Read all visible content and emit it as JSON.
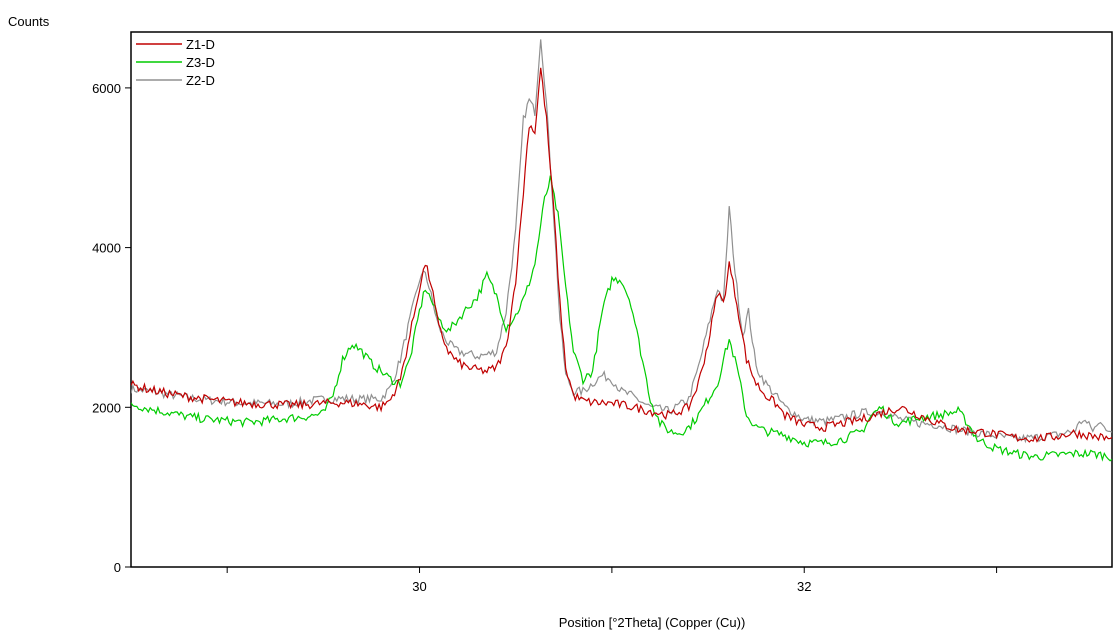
{
  "chart_data": {
    "type": "line",
    "title": "",
    "xlabel": "Position [°2Theta] (Copper (Cu))",
    "ylabel": "Counts",
    "xlim": [
      28.5,
      33.6
    ],
    "ylim": [
      0,
      6700
    ],
    "x_ticks": [
      29,
      30,
      31,
      32,
      33
    ],
    "x_tick_labels": [
      "30",
      "32"
    ],
    "x_tick_label_values": [
      30,
      32
    ],
    "y_ticks": [
      0,
      2000,
      4000,
      6000
    ],
    "y_tick_labels": [
      "0",
      "2000",
      "4000",
      "6000"
    ],
    "grid": false,
    "legend_position": "top-left",
    "series": [
      {
        "name": "Z1-D",
        "color": "#c00000",
        "points": [
          [
            28.5,
            2280
          ],
          [
            28.6,
            2220
          ],
          [
            28.7,
            2170
          ],
          [
            28.8,
            2130
          ],
          [
            28.9,
            2100
          ],
          [
            29.0,
            2070
          ],
          [
            29.1,
            2050
          ],
          [
            29.2,
            2040
          ],
          [
            29.3,
            2030
          ],
          [
            29.4,
            2030
          ],
          [
            29.5,
            2050
          ],
          [
            29.6,
            2060
          ],
          [
            29.7,
            2040
          ],
          [
            29.8,
            2000
          ],
          [
            29.85,
            2100
          ],
          [
            29.9,
            2350
          ],
          [
            29.95,
            2900
          ],
          [
            30.0,
            3500
          ],
          [
            30.03,
            3800
          ],
          [
            30.06,
            3550
          ],
          [
            30.1,
            3000
          ],
          [
            30.15,
            2700
          ],
          [
            30.2,
            2560
          ],
          [
            30.25,
            2500
          ],
          [
            30.3,
            2470
          ],
          [
            30.35,
            2450
          ],
          [
            30.4,
            2500
          ],
          [
            30.45,
            2750
          ],
          [
            30.5,
            3600
          ],
          [
            30.54,
            4700
          ],
          [
            30.57,
            5550
          ],
          [
            30.6,
            5450
          ],
          [
            30.63,
            6250
          ],
          [
            30.66,
            5600
          ],
          [
            30.7,
            4400
          ],
          [
            30.73,
            3300
          ],
          [
            30.76,
            2500
          ],
          [
            30.8,
            2150
          ],
          [
            30.85,
            2080
          ],
          [
            30.9,
            2060
          ],
          [
            31.0,
            2050
          ],
          [
            31.1,
            2010
          ],
          [
            31.2,
            1950
          ],
          [
            31.3,
            1900
          ],
          [
            31.4,
            2000
          ],
          [
            31.45,
            2300
          ],
          [
            31.5,
            2800
          ],
          [
            31.55,
            3450
          ],
          [
            31.58,
            3300
          ],
          [
            31.61,
            3800
          ],
          [
            31.65,
            3300
          ],
          [
            31.7,
            2600
          ],
          [
            31.75,
            2300
          ],
          [
            31.8,
            2150
          ],
          [
            31.85,
            2050
          ],
          [
            31.9,
            1900
          ],
          [
            32.0,
            1780
          ],
          [
            32.1,
            1750
          ],
          [
            32.2,
            1800
          ],
          [
            32.3,
            1850
          ],
          [
            32.4,
            1930
          ],
          [
            32.5,
            2000
          ],
          [
            32.6,
            1900
          ],
          [
            32.7,
            1800
          ],
          [
            32.8,
            1720
          ],
          [
            32.9,
            1700
          ],
          [
            33.0,
            1660
          ],
          [
            33.1,
            1620
          ],
          [
            33.2,
            1610
          ],
          [
            33.3,
            1630
          ],
          [
            33.4,
            1680
          ],
          [
            33.5,
            1640
          ],
          [
            33.6,
            1600
          ]
        ]
      },
      {
        "name": "Z3-D",
        "color": "#00cc00",
        "points": [
          [
            28.5,
            2040
          ],
          [
            28.6,
            1980
          ],
          [
            28.7,
            1930
          ],
          [
            28.8,
            1880
          ],
          [
            28.9,
            1850
          ],
          [
            29.0,
            1830
          ],
          [
            29.1,
            1810
          ],
          [
            29.2,
            1830
          ],
          [
            29.3,
            1860
          ],
          [
            29.4,
            1880
          ],
          [
            29.5,
            1920
          ],
          [
            29.55,
            2150
          ],
          [
            29.6,
            2600
          ],
          [
            29.65,
            2800
          ],
          [
            29.7,
            2700
          ],
          [
            29.75,
            2550
          ],
          [
            29.8,
            2450
          ],
          [
            29.85,
            2350
          ],
          [
            29.9,
            2300
          ],
          [
            29.95,
            2600
          ],
          [
            30.0,
            3200
          ],
          [
            30.03,
            3500
          ],
          [
            30.06,
            3350
          ],
          [
            30.1,
            3100
          ],
          [
            30.15,
            2950
          ],
          [
            30.2,
            3100
          ],
          [
            30.25,
            3250
          ],
          [
            30.3,
            3380
          ],
          [
            30.35,
            3650
          ],
          [
            30.4,
            3400
          ],
          [
            30.45,
            3000
          ],
          [
            30.5,
            3150
          ],
          [
            30.55,
            3400
          ],
          [
            30.6,
            3800
          ],
          [
            30.65,
            4600
          ],
          [
            30.68,
            4850
          ],
          [
            30.72,
            4400
          ],
          [
            30.76,
            3500
          ],
          [
            30.8,
            2700
          ],
          [
            30.85,
            2350
          ],
          [
            30.9,
            2450
          ],
          [
            30.95,
            3200
          ],
          [
            31.0,
            3600
          ],
          [
            31.05,
            3600
          ],
          [
            31.1,
            3300
          ],
          [
            31.15,
            2700
          ],
          [
            31.2,
            2100
          ],
          [
            31.25,
            1800
          ],
          [
            31.3,
            1700
          ],
          [
            31.35,
            1680
          ],
          [
            31.4,
            1750
          ],
          [
            31.45,
            1900
          ],
          [
            31.5,
            2100
          ],
          [
            31.55,
            2300
          ],
          [
            31.58,
            2600
          ],
          [
            31.61,
            2850
          ],
          [
            31.65,
            2500
          ],
          [
            31.7,
            1900
          ],
          [
            31.75,
            1750
          ],
          [
            31.8,
            1700
          ],
          [
            31.9,
            1650
          ],
          [
            32.0,
            1560
          ],
          [
            32.1,
            1550
          ],
          [
            32.2,
            1600
          ],
          [
            32.3,
            1700
          ],
          [
            32.35,
            1900
          ],
          [
            32.4,
            2000
          ],
          [
            32.45,
            1850
          ],
          [
            32.5,
            1800
          ],
          [
            32.6,
            1870
          ],
          [
            32.7,
            1900
          ],
          [
            32.8,
            1950
          ],
          [
            32.85,
            1800
          ],
          [
            32.9,
            1600
          ],
          [
            33.0,
            1480
          ],
          [
            33.1,
            1420
          ],
          [
            33.2,
            1380
          ],
          [
            33.3,
            1400
          ],
          [
            33.4,
            1420
          ],
          [
            33.5,
            1420
          ],
          [
            33.6,
            1380
          ]
        ]
      },
      {
        "name": "Z2-D",
        "color": "#909090",
        "points": [
          [
            28.5,
            2230
          ],
          [
            28.6,
            2200
          ],
          [
            28.7,
            2160
          ],
          [
            28.8,
            2120
          ],
          [
            28.9,
            2090
          ],
          [
            29.0,
            2070
          ],
          [
            29.1,
            2050
          ],
          [
            29.2,
            2050
          ],
          [
            29.3,
            2040
          ],
          [
            29.4,
            2070
          ],
          [
            29.5,
            2100
          ],
          [
            29.6,
            2110
          ],
          [
            29.7,
            2100
          ],
          [
            29.8,
            2110
          ],
          [
            29.85,
            2250
          ],
          [
            29.9,
            2600
          ],
          [
            29.95,
            3100
          ],
          [
            30.0,
            3600
          ],
          [
            30.03,
            3700
          ],
          [
            30.06,
            3400
          ],
          [
            30.1,
            3000
          ],
          [
            30.15,
            2800
          ],
          [
            30.2,
            2700
          ],
          [
            30.25,
            2670
          ],
          [
            30.3,
            2640
          ],
          [
            30.35,
            2660
          ],
          [
            30.4,
            2700
          ],
          [
            30.45,
            3200
          ],
          [
            30.5,
            4200
          ],
          [
            30.54,
            5600
          ],
          [
            30.57,
            5850
          ],
          [
            30.6,
            5700
          ],
          [
            30.63,
            6650
          ],
          [
            30.66,
            5800
          ],
          [
            30.7,
            4300
          ],
          [
            30.73,
            3100
          ],
          [
            30.76,
            2400
          ],
          [
            30.8,
            2200
          ],
          [
            30.85,
            2200
          ],
          [
            30.9,
            2300
          ],
          [
            30.95,
            2400
          ],
          [
            31.0,
            2350
          ],
          [
            31.05,
            2200
          ],
          [
            31.1,
            2150
          ],
          [
            31.2,
            2000
          ],
          [
            31.3,
            1950
          ],
          [
            31.4,
            2100
          ],
          [
            31.45,
            2500
          ],
          [
            31.5,
            3000
          ],
          [
            31.55,
            3500
          ],
          [
            31.58,
            3300
          ],
          [
            31.61,
            4500
          ],
          [
            31.64,
            3700
          ],
          [
            31.68,
            2900
          ],
          [
            31.71,
            3200
          ],
          [
            31.75,
            2500
          ],
          [
            31.8,
            2300
          ],
          [
            31.85,
            2150
          ],
          [
            31.9,
            2000
          ],
          [
            32.0,
            1850
          ],
          [
            32.1,
            1820
          ],
          [
            32.2,
            1870
          ],
          [
            32.3,
            1930
          ],
          [
            32.4,
            1950
          ],
          [
            32.5,
            1850
          ],
          [
            32.6,
            1800
          ],
          [
            32.7,
            1780
          ],
          [
            32.8,
            1720
          ],
          [
            32.9,
            1680
          ],
          [
            33.0,
            1640
          ],
          [
            33.1,
            1600
          ],
          [
            33.2,
            1620
          ],
          [
            33.3,
            1650
          ],
          [
            33.4,
            1700
          ],
          [
            33.45,
            1850
          ],
          [
            33.5,
            1720
          ],
          [
            33.55,
            1820
          ],
          [
            33.6,
            1650
          ]
        ]
      }
    ]
  }
}
